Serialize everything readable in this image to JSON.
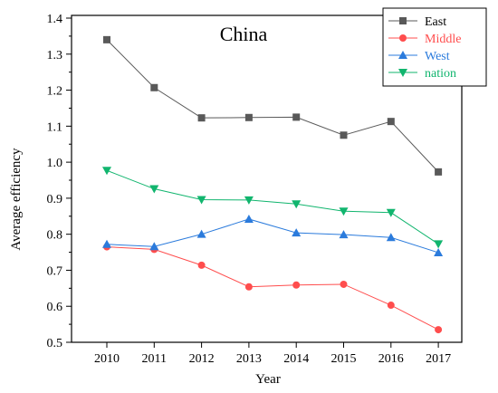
{
  "chart_data": {
    "type": "line",
    "title": "China",
    "xlabel": "Year",
    "ylabel": "Average efficiency",
    "categories": [
      "2010",
      "2011",
      "2012",
      "2013",
      "2014",
      "2015",
      "2016",
      "2017"
    ],
    "ylim": [
      0.5,
      1.4
    ],
    "yticks": [
      "0.5",
      "0.6",
      "0.7",
      "0.8",
      "0.9",
      "1.0",
      "1.1",
      "1.2",
      "1.3",
      "1.4"
    ],
    "grid": false,
    "legend_position": "top-right",
    "series": [
      {
        "name": "East",
        "color": "#595959",
        "marker": "square",
        "label_color": "#000000",
        "values": [
          1.34,
          1.207,
          1.123,
          1.124,
          1.125,
          1.075,
          1.113,
          0.973
        ]
      },
      {
        "name": "Middle",
        "color": "#ff4d4d",
        "marker": "circle",
        "label_color": "#ff4d4d",
        "values": [
          0.765,
          0.758,
          0.714,
          0.654,
          0.659,
          0.661,
          0.603,
          0.535
        ]
      },
      {
        "name": "West",
        "color": "#2b7bdc",
        "marker": "triangle-up",
        "label_color": "#2b7bdc",
        "values": [
          0.772,
          0.766,
          0.8,
          0.842,
          0.804,
          0.799,
          0.791,
          0.749
        ]
      },
      {
        "name": "nation",
        "color": "#11b56e",
        "marker": "triangle-down",
        "label_color": "#11b56e",
        "values": [
          0.977,
          0.926,
          0.896,
          0.895,
          0.884,
          0.864,
          0.86,
          0.773
        ]
      }
    ]
  }
}
